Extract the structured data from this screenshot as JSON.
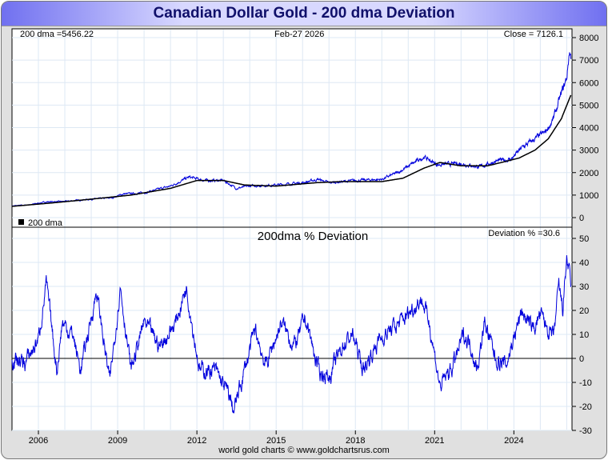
{
  "title": "Canadian Dollar Gold - 200 dma Deviation",
  "footer": "world gold charts © www.goldchartsrus.com",
  "colors": {
    "price": "#0000dd",
    "dma": "#000000",
    "grid": "#dde8f4"
  },
  "chart_data": [
    {
      "type": "line",
      "title": "",
      "labels": {
        "dma": "200 dma =5456.22",
        "date": "Feb-27  2026",
        "close": "Close = 7126.1",
        "legend": "200 dma"
      },
      "ylim": [
        0,
        8000
      ],
      "yticks": [
        0,
        1000,
        2000,
        3000,
        4000,
        5000,
        6000,
        7000,
        8000
      ],
      "xlim": [
        2005.0,
        2026.2
      ],
      "series": [
        {
          "name": "price",
          "points": [
            [
              2005,
              520
            ],
            [
              2005.6,
              560
            ],
            [
              2006.3,
              700
            ],
            [
              2007,
              720
            ],
            [
              2008,
              820
            ],
            [
              2008.8,
              880
            ],
            [
              2009.2,
              1050
            ],
            [
              2010,
              1100
            ],
            [
              2011,
              1400
            ],
            [
              2011.7,
              1800
            ],
            [
              2012.3,
              1650
            ],
            [
              2013,
              1650
            ],
            [
              2013.5,
              1300
            ],
            [
              2014,
              1400
            ],
            [
              2015,
              1450
            ],
            [
              2016,
              1550
            ],
            [
              2016.6,
              1700
            ],
            [
              2017,
              1550
            ],
            [
              2018,
              1650
            ],
            [
              2019,
              1700
            ],
            [
              2019.6,
              2000
            ],
            [
              2020.6,
              2700
            ],
            [
              2021.1,
              2350
            ],
            [
              2022,
              2400
            ],
            [
              2022.7,
              2250
            ],
            [
              2023.3,
              2500
            ],
            [
              2023.9,
              2600
            ],
            [
              2024.3,
              3100
            ],
            [
              2024.8,
              3500
            ],
            [
              2025.2,
              3800
            ],
            [
              2025.5,
              4400
            ],
            [
              2025.8,
              5500
            ],
            [
              2026.0,
              6200
            ],
            [
              2026.1,
              7400
            ],
            [
              2026.16,
              7126
            ]
          ]
        },
        {
          "name": "200 dma",
          "points": [
            [
              2005,
              500
            ],
            [
              2006.5,
              650
            ],
            [
              2008,
              820
            ],
            [
              2009.5,
              1000
            ],
            [
              2011,
              1300
            ],
            [
              2012,
              1650
            ],
            [
              2013,
              1650
            ],
            [
              2013.8,
              1450
            ],
            [
              2015,
              1400
            ],
            [
              2016.5,
              1550
            ],
            [
              2017.5,
              1600
            ],
            [
              2019,
              1600
            ],
            [
              2019.8,
              1750
            ],
            [
              2020.6,
              2200
            ],
            [
              2021.2,
              2450
            ],
            [
              2022,
              2300
            ],
            [
              2023,
              2300
            ],
            [
              2023.7,
              2500
            ],
            [
              2024.2,
              2650
            ],
            [
              2024.8,
              3000
            ],
            [
              2025.3,
              3500
            ],
            [
              2025.8,
              4400
            ],
            [
              2026.16,
              5456
            ]
          ]
        }
      ]
    },
    {
      "type": "line",
      "title": "200dma  %  Deviation",
      "labels": {
        "deviation": "Deviation % =30.6"
      },
      "ylim": [
        -30,
        50
      ],
      "yticks": [
        -30,
        -20,
        -10,
        0,
        10,
        20,
        30,
        40,
        50
      ],
      "xlim": [
        2005.0,
        2026.2
      ],
      "xticks": [
        "2006",
        "2009",
        "2012",
        "2015",
        "2018",
        "2021",
        "2024"
      ],
      "xtick_values": [
        2006,
        2009,
        2012,
        2015,
        2018,
        2021,
        2024
      ],
      "series": [
        {
          "name": "deviation",
          "points": [
            [
              2005,
              0
            ],
            [
              2005.5,
              -2
            ],
            [
              2006,
              8
            ],
            [
              2006.3,
              31
            ],
            [
              2006.7,
              -5
            ],
            [
              2006.9,
              15
            ],
            [
              2007.3,
              10
            ],
            [
              2007.6,
              -5
            ],
            [
              2008.2,
              28
            ],
            [
              2008.7,
              -10
            ],
            [
              2009.1,
              30
            ],
            [
              2009.5,
              -5
            ],
            [
              2010,
              15
            ],
            [
              2010.6,
              5
            ],
            [
              2011.2,
              15
            ],
            [
              2011.6,
              30
            ],
            [
              2012.1,
              -5
            ],
            [
              2012.7,
              -5
            ],
            [
              2013.2,
              -15
            ],
            [
              2013.4,
              -22
            ],
            [
              2013.8,
              -5
            ],
            [
              2014.2,
              12
            ],
            [
              2014.6,
              -3
            ],
            [
              2015.2,
              15
            ],
            [
              2015.7,
              5
            ],
            [
              2016.1,
              17
            ],
            [
              2016.6,
              -5
            ],
            [
              2017,
              -8
            ],
            [
              2017.5,
              5
            ],
            [
              2017.9,
              10
            ],
            [
              2018.3,
              -5
            ],
            [
              2018.9,
              8
            ],
            [
              2019.7,
              15
            ],
            [
              2020.5,
              25
            ],
            [
              2020.8,
              15
            ],
            [
              2021.1,
              -5
            ],
            [
              2021.2,
              -12
            ],
            [
              2021.7,
              -3
            ],
            [
              2022.1,
              10
            ],
            [
              2022.4,
              5
            ],
            [
              2022.6,
              -5
            ],
            [
              2022.9,
              15
            ],
            [
              2023.3,
              0
            ],
            [
              2023.7,
              -3
            ],
            [
              2023.9,
              5
            ],
            [
              2024.3,
              20
            ],
            [
              2024.7,
              12
            ],
            [
              2025,
              18
            ],
            [
              2025.5,
              8
            ],
            [
              2025.7,
              30
            ],
            [
              2025.85,
              20
            ],
            [
              2026.0,
              42
            ],
            [
              2026.16,
              30
            ]
          ]
        }
      ]
    }
  ]
}
